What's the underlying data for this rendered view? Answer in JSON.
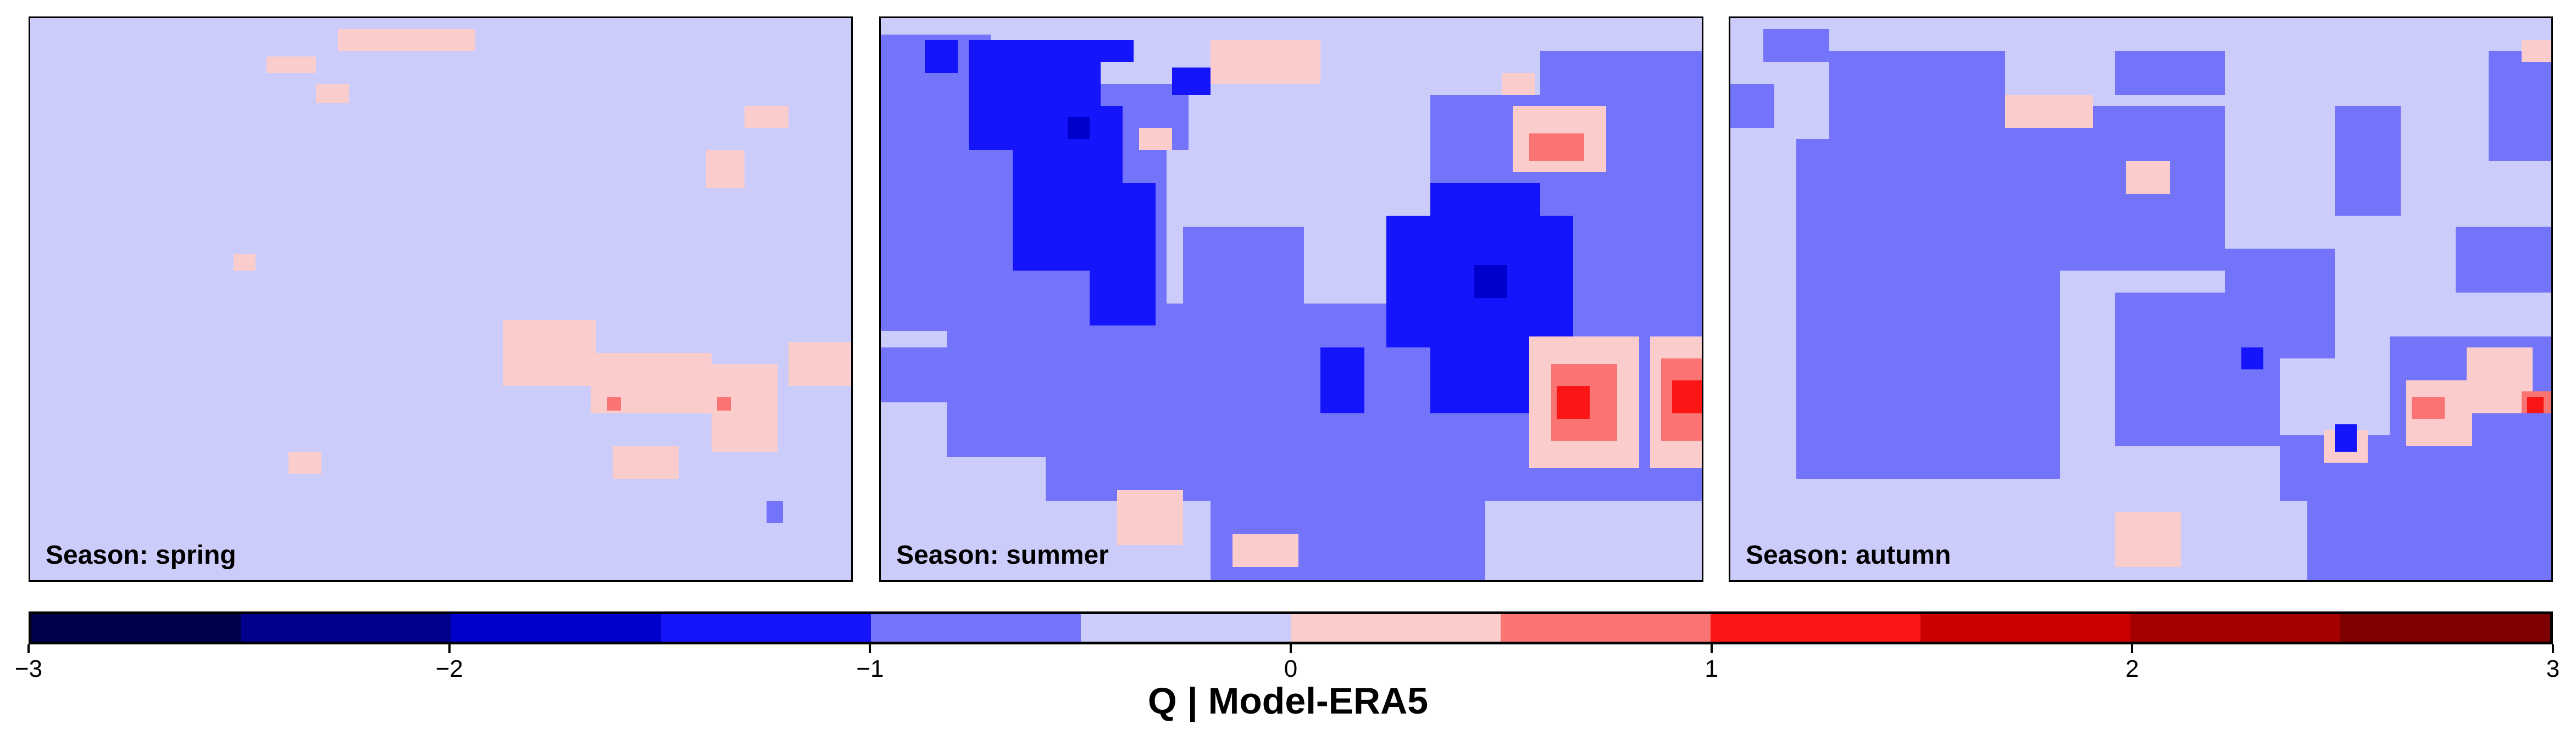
{
  "panels": [
    {
      "label": "Season: spring"
    },
    {
      "label": "Season: summer"
    },
    {
      "label": "Season: autumn"
    }
  ],
  "colorbar": {
    "title": "Q | Model-ERA5",
    "ticks": [
      "−3",
      "−2",
      "−1",
      "0",
      "1",
      "2",
      "3"
    ],
    "range": [
      -3,
      3
    ],
    "colors": [
      "#00004c",
      "#00008d",
      "#0000cc",
      "#1515fb",
      "#7474fb",
      "#ccccfa",
      "#fbcccc",
      "#fb7474",
      "#fb1515",
      "#cc0000",
      "#a50000",
      "#7f0000"
    ]
  },
  "map_colors": {
    "background": "#ccccfa",
    "coastline": "#000000"
  }
}
